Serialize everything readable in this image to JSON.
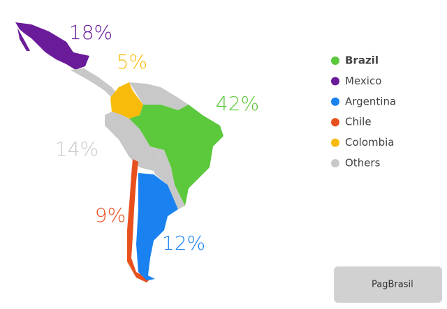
{
  "chart_data": {
    "type": "map",
    "categories": [
      "Brazil",
      "Mexico",
      "Argentina",
      "Chile",
      "Colombia",
      "Others"
    ],
    "values": [
      42,
      18,
      12,
      9,
      5,
      14
    ],
    "value_labels": [
      "42%",
      "18%",
      "12%",
      "9%",
      "5%",
      "14%"
    ],
    "colors": [
      "#5cc83b",
      "#6a1b9a",
      "#1a82f0",
      "#e8501e",
      "#f8bb0c",
      "#c8c8c8"
    ],
    "legend": "right"
  },
  "watermark": "PagBrasil"
}
